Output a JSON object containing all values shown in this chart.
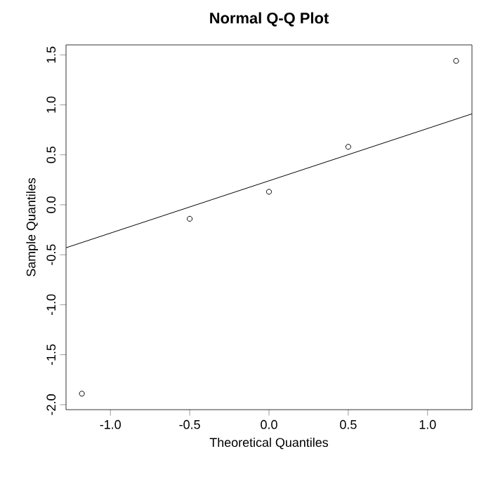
{
  "chart_data": {
    "type": "scatter",
    "title": "Normal Q-Q Plot",
    "xlabel": "Theoretical Quantiles",
    "ylabel": "Sample Quantiles",
    "xlim": [
      -1.28,
      1.28
    ],
    "ylim": [
      -2.05,
      1.6
    ],
    "xticks": [
      {
        "value": -1.0,
        "label": "-1.0"
      },
      {
        "value": -0.5,
        "label": "-0.5"
      },
      {
        "value": 0.0,
        "label": "0.0"
      },
      {
        "value": 0.5,
        "label": "0.5"
      },
      {
        "value": 1.0,
        "label": "1.0"
      }
    ],
    "yticks": [
      {
        "value": -2.0,
        "label": "-2.0"
      },
      {
        "value": -1.5,
        "label": "-1.5"
      },
      {
        "value": -1.0,
        "label": "-1.0"
      },
      {
        "value": -0.5,
        "label": "-0.5"
      },
      {
        "value": 0.0,
        "label": "0.0"
      },
      {
        "value": 0.5,
        "label": "0.5"
      },
      {
        "value": 1.0,
        "label": "1.0"
      },
      {
        "value": 1.5,
        "label": "1.5"
      }
    ],
    "x": [
      -1.18,
      -0.5,
      0.0,
      0.5,
      1.18
    ],
    "series": [
      {
        "color": "#000000",
        "marker": "circle",
        "values": [
          -1.89,
          -0.14,
          0.13,
          0.58,
          1.44
        ]
      },
      {
        "type": "line",
        "color": "#000000",
        "marker": "none",
        "line_style": "solid",
        "x": [
          -1.28,
          1.28
        ],
        "values": [
          -0.43,
          0.91
        ]
      }
    ],
    "grid": false
  }
}
